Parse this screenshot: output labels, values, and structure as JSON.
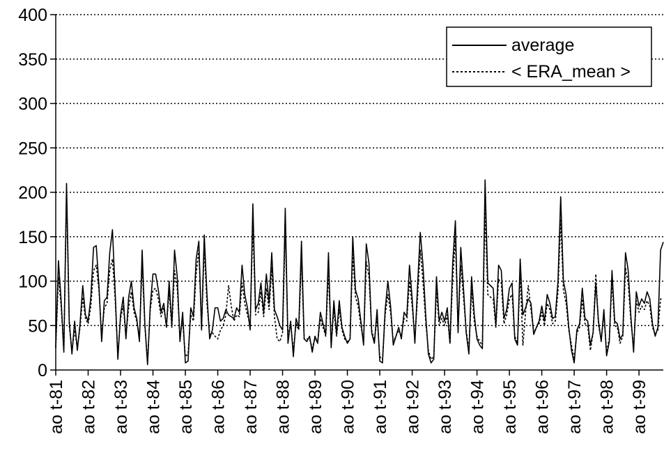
{
  "chart_data": {
    "type": "line",
    "title": "",
    "xlabel": "",
    "ylabel": "",
    "ylim": [
      0,
      400
    ],
    "y_ticks": [
      0,
      50,
      100,
      150,
      200,
      250,
      300,
      350,
      400
    ],
    "x_tick_labels": [
      "ao t-81",
      "ao t-82",
      "ao t-83",
      "ao t-84",
      "ao t-85",
      "ao t-86",
      "ao t-87",
      "ao t-88",
      "ao t-89",
      "ao t-90",
      "ao t-91",
      "ao t-92",
      "ao t-93",
      "ao t-94",
      "ao t-95",
      "ao t-96",
      "ao t-97",
      "ao t-98",
      "ao t-99"
    ],
    "grid": "horizontal dotted",
    "legend_position": "top-right",
    "series": [
      {
        "name": "average",
        "style": "solid",
        "values": [
          25,
          123,
          78,
          20,
          210,
          55,
          18,
          55,
          22,
          52,
          95,
          62,
          55,
          82,
          138,
          140,
          95,
          32,
          78,
          82,
          132,
          158,
          88,
          12,
          62,
          82,
          35,
          82,
          100,
          70,
          58,
          32,
          135,
          52,
          6,
          72,
          108,
          108,
          90,
          65,
          75,
          48,
          100,
          50,
          135,
          105,
          32,
          65,
          8,
          10,
          70,
          60,
          125,
          145,
          45,
          152,
          85,
          35,
          45,
          70,
          70,
          55,
          58,
          68,
          62,
          60,
          58,
          70,
          65,
          118,
          85,
          70,
          45,
          187,
          68,
          75,
          98,
          65,
          108,
          75,
          132,
          68,
          60,
          50,
          45,
          182,
          30,
          55,
          15,
          58,
          48,
          145,
          35,
          32,
          38,
          20,
          38,
          30,
          65,
          52,
          40,
          132,
          25,
          78,
          40,
          78,
          48,
          38,
          30,
          35,
          150,
          90,
          80,
          55,
          28,
          142,
          120,
          42,
          30,
          68,
          10,
          8,
          68,
          100,
          72,
          28,
          38,
          48,
          35,
          65,
          60,
          118,
          80,
          30,
          95,
          155,
          118,
          62,
          18,
          8,
          12,
          105,
          55,
          65,
          55,
          70,
          30,
          120,
          168,
          42,
          138,
          92,
          42,
          18,
          105,
          62,
          35,
          28,
          24,
          214,
          98,
          95,
          92,
          50,
          118,
          112,
          58,
          68,
          92,
          98,
          35,
          28,
          125,
          62,
          70,
          80,
          75,
          40,
          48,
          55,
          72,
          55,
          85,
          75,
          58,
          60,
          100,
          195,
          100,
          85,
          48,
          22,
          8,
          45,
          52,
          92,
          58,
          55,
          28,
          42,
          98,
          55,
          32,
          68,
          16,
          32,
          112,
          55,
          52,
          35,
          40,
          132,
          112,
          60,
          20,
          88,
          72,
          80,
          75,
          88,
          80,
          52,
          38,
          48,
          135,
          144
        ]
      },
      {
        "name": "< ERA_mean >",
        "style": "dotted",
        "values": [
          25,
          105,
          72,
          22,
          200,
          50,
          22,
          45,
          25,
          48,
          82,
          58,
          52,
          72,
          112,
          118,
          90,
          38,
          70,
          75,
          112,
          125,
          80,
          18,
          58,
          72,
          38,
          70,
          88,
          65,
          55,
          38,
          118,
          50,
          10,
          68,
          90,
          92,
          80,
          60,
          70,
          50,
          88,
          48,
          112,
          92,
          38,
          55,
          15,
          18,
          62,
          55,
          108,
          135,
          48,
          138,
          75,
          40,
          42,
          38,
          35,
          45,
          50,
          62,
          95,
          72,
          55,
          62,
          60,
          98,
          75,
          62,
          50,
          165,
          62,
          65,
          88,
          60,
          92,
          68,
          115,
          60,
          35,
          32,
          42,
          158,
          38,
          52,
          22,
          52,
          45,
          125,
          35,
          35,
          35,
          25,
          35,
          32,
          58,
          48,
          38,
          112,
          28,
          68,
          38,
          68,
          45,
          35,
          32,
          35,
          130,
          82,
          72,
          50,
          32,
          122,
          105,
          45,
          32,
          60,
          15,
          12,
          62,
          85,
          65,
          32,
          38,
          45,
          38,
          58,
          55,
          100,
          72,
          35,
          82,
          135,
          100,
          55,
          22,
          12,
          15,
          90,
          50,
          58,
          50,
          62,
          30,
          102,
          148,
          45,
          118,
          82,
          45,
          22,
          90,
          55,
          38,
          32,
          28,
          180,
          85,
          82,
          80,
          48,
          102,
          98,
          52,
          62,
          80,
          85,
          38,
          30,
          108,
          28,
          65,
          95,
          68,
          42,
          48,
          52,
          65,
          50,
          75,
          68,
          52,
          55,
          88,
          170,
          90,
          75,
          45,
          28,
          12,
          42,
          48,
          80,
          52,
          50,
          22,
          42,
          108,
          50,
          35,
          62,
          20,
          35,
          100,
          50,
          48,
          30,
          38,
          115,
          98,
          55,
          25,
          78,
          65,
          72,
          68,
          78,
          72,
          48,
          40,
          45,
          80,
          80
        ]
      }
    ]
  }
}
